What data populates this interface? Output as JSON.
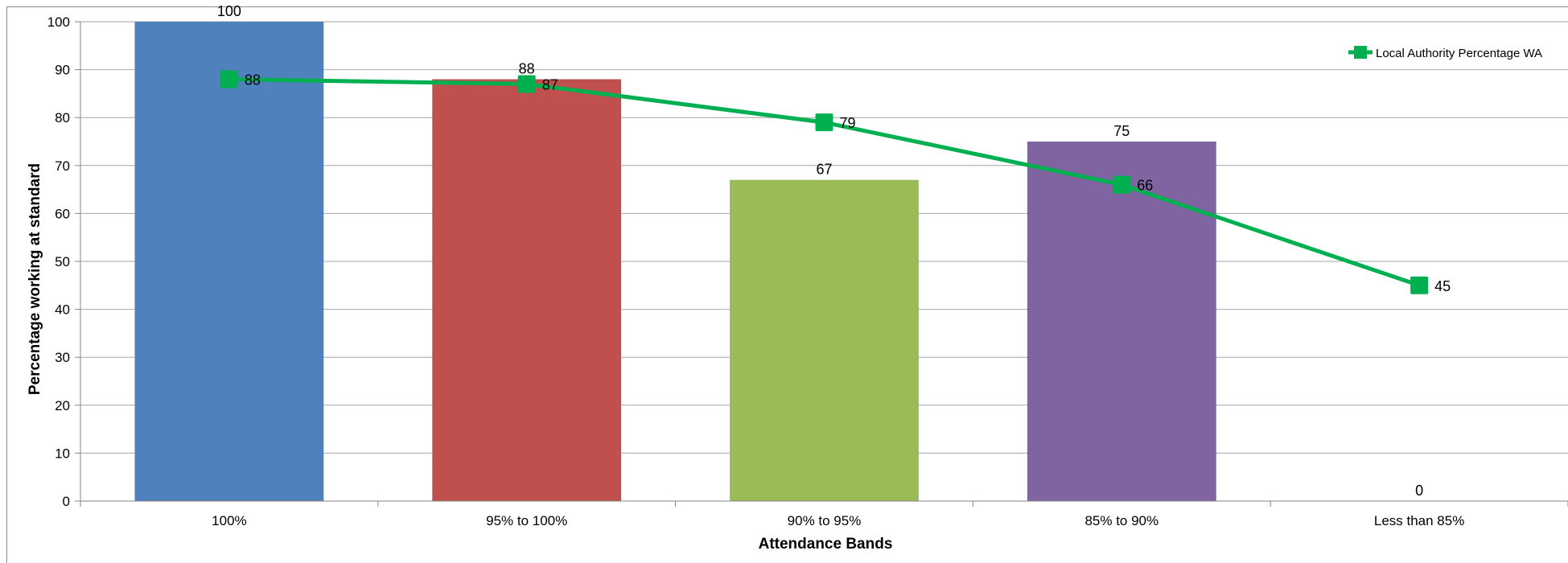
{
  "chart_data": {
    "type": "bar",
    "categories": [
      "100%",
      "95% to 100%",
      "90% to 95%",
      "85% to 90%",
      "Less than 85%"
    ],
    "series": [
      {
        "kind": "bar",
        "values": [
          100,
          88,
          67,
          75,
          0
        ],
        "data_labels": [
          "100",
          "88",
          "67",
          "75",
          "0"
        ],
        "colors": [
          "#4F81BD",
          "#C0504D",
          "#9BBB59",
          "#8064A2",
          "#4BACC6"
        ]
      },
      {
        "kind": "line",
        "name": "Local Authority Percentage WA",
        "values": [
          88,
          87,
          79,
          66,
          45
        ],
        "data_labels": [
          "88",
          "87",
          "79",
          "66",
          "45"
        ],
        "color": "#00B050"
      }
    ],
    "title": "",
    "xlabel": "Attendance Bands",
    "ylabel": "Percentage working at standard",
    "ylim": [
      0,
      100
    ],
    "yticks": [
      "0",
      "10",
      "20",
      "30",
      "40",
      "50",
      "60",
      "70",
      "80",
      "90",
      "100"
    ],
    "grid": true,
    "legend_position": "top-right",
    "colors": {
      "gridline": "#A6A6A6",
      "axis": "#868686",
      "border": "#8C8C8C"
    }
  }
}
